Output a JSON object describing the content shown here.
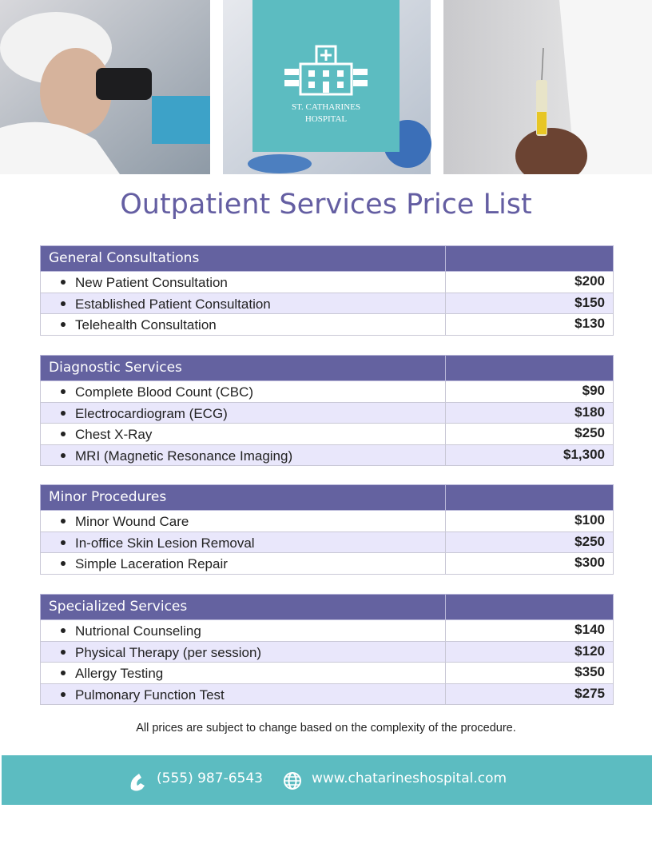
{
  "logo": {
    "line1": "ST. CATHARINES",
    "line2": "HOSPITAL"
  },
  "title": "Outpatient Services Price List",
  "sections": [
    {
      "heading": "General Consultations",
      "items": [
        {
          "name": "New Patient Consultation",
          "price": "$200"
        },
        {
          "name": "Established Patient Consultation",
          "price": "$150"
        },
        {
          "name": "Telehealth Consultation",
          "price": "$130"
        }
      ]
    },
    {
      "heading": "Diagnostic Services",
      "items": [
        {
          "name": "Complete Blood Count (CBC)",
          "price": "$90"
        },
        {
          "name": "Electrocardiogram (ECG)",
          "price": "$180"
        },
        {
          "name": "Chest X-Ray",
          "price": "$250"
        },
        {
          "name": "MRI (Magnetic Resonance Imaging)",
          "price": "$1,300"
        }
      ]
    },
    {
      "heading": "Minor Procedures",
      "items": [
        {
          "name": "Minor Wound Care",
          "price": "$100"
        },
        {
          "name": "In-office Skin Lesion Removal",
          "price": "$250"
        },
        {
          "name": "Simple Laceration Repair",
          "price": "$300"
        }
      ]
    },
    {
      "heading": "Specialized Services",
      "items": [
        {
          "name": "Nutrional Counseling",
          "price": "$140"
        },
        {
          "name": "Physical Therapy (per session)",
          "price": "$120"
        },
        {
          "name": "Allergy Testing",
          "price": "$350"
        },
        {
          "name": "Pulmonary Function Test",
          "price": "$275"
        }
      ]
    }
  ],
  "note": "All prices are subject to change based on the complexity of the procedure.",
  "footer": {
    "phone": "(555) 987-6543",
    "website": "www.chatarineshospital.com"
  }
}
